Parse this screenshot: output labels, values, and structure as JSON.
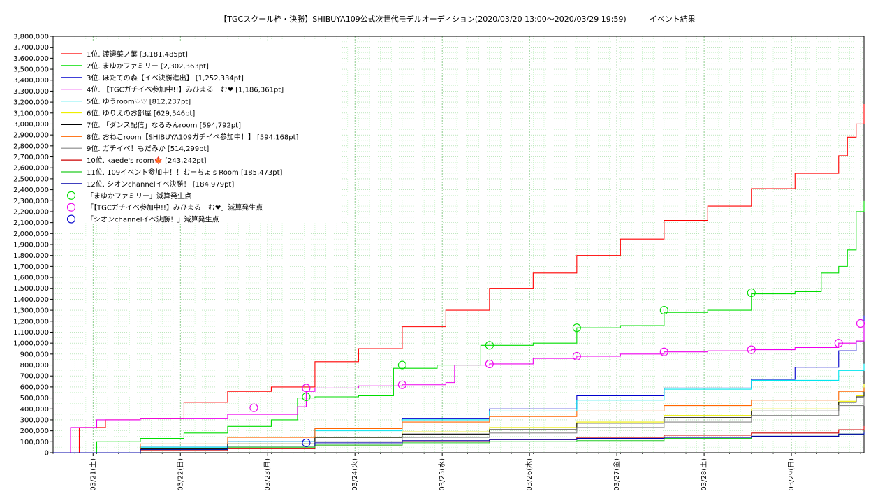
{
  "chart_data": {
    "type": "line",
    "title": "【TGCスクール枠・決勝】SHIBUYA109公式次世代モデルオーディション(2020/03/20 13:00～2020/03/29 19:59)　　　イベント結果",
    "xlabel": "",
    "ylabel": "",
    "x_ticks": [
      "03/21(土)",
      "03/22(日)",
      "03/23(月)",
      "03/24(火)",
      "03/25(水)",
      "03/26(木)",
      "03/27(金)",
      "03/28(土)",
      "03/29(日)"
    ],
    "x_range": [
      "2020/03/20 13:00",
      "2020/03/29 19:59"
    ],
    "ylim": [
      0,
      3800000
    ],
    "y_ticks": [
      "0",
      "100,000",
      "200,000",
      "300,000",
      "400,000",
      "500,000",
      "600,000",
      "700,000",
      "800,000",
      "900,000",
      "1,000,000",
      "1,100,000",
      "1,200,000",
      "1,300,000",
      "1,400,000",
      "1,500,000",
      "1,600,000",
      "1,700,000",
      "1,800,000",
      "1,900,000",
      "2,000,000",
      "2,100,000",
      "2,200,000",
      "2,300,000",
      "2,400,000",
      "2,500,000",
      "2,600,000",
      "2,700,000",
      "2,800,000",
      "2,900,000",
      "3,000,000",
      "3,100,000",
      "3,200,000",
      "3,300,000",
      "3,400,000",
      "3,500,000",
      "3,600,000",
      "3,700,000",
      "3,800,000"
    ],
    "grid": true,
    "legend_position": "top-left",
    "series": [
      {
        "name": "1位. 渡邉菜ノ葉 [3,181,485pt]",
        "color": "#ff0000",
        "x": [
          0,
          0.3,
          0.6,
          1,
          1.5,
          2,
          2.5,
          3,
          3.5,
          4,
          4.5,
          5,
          5.5,
          6,
          6.5,
          7,
          7.5,
          8,
          8.5,
          9,
          9.1,
          9.2,
          9.29
        ],
        "y": [
          0,
          230000,
          300000,
          310000,
          460000,
          560000,
          600000,
          830000,
          950000,
          1150000,
          1300000,
          1500000,
          1640000,
          1800000,
          1950000,
          2120000,
          2250000,
          2410000,
          2550000,
          2710000,
          2880000,
          3000000,
          3181485
        ]
      },
      {
        "name": "2位. まゆかファミリー [2,302,363pt]",
        "color": "#00dd00",
        "x": [
          0,
          0.5,
          1,
          1.5,
          2,
          2.5,
          2.8,
          3,
          3.5,
          3.9,
          4.4,
          4.9,
          5.5,
          6,
          6.5,
          7,
          7.5,
          8,
          8.5,
          8.8,
          9,
          9.1,
          9.2,
          9.29
        ],
        "y": [
          0,
          100000,
          130000,
          180000,
          240000,
          300000,
          500000,
          510000,
          520000,
          770000,
          800000,
          980000,
          1000000,
          1140000,
          1160000,
          1280000,
          1300000,
          1450000,
          1470000,
          1640000,
          1700000,
          1850000,
          2200000,
          2302363
        ]
      },
      {
        "name": "3位. ほたての森【イベ決勝進出】 [1,252,334pt]",
        "color": "#0000cc",
        "x": [
          0,
          1,
          2,
          3,
          4,
          5,
          6,
          7,
          8,
          8.5,
          9,
          9.2,
          9.29
        ],
        "y": [
          0,
          60000,
          100000,
          220000,
          310000,
          400000,
          520000,
          590000,
          670000,
          780000,
          930000,
          1020000,
          1252334
        ]
      },
      {
        "name": "4位. 【TGCガチイベ参加中!!】みひまるーむ❤ [1,186,361pt]",
        "color": "#ee00ee",
        "x": [
          0,
          0.2,
          0.5,
          1,
          2,
          2.8,
          2.9,
          3,
          3.5,
          4,
          4.5,
          4.6,
          5,
          5.5,
          6,
          6.5,
          7,
          7.5,
          8,
          8.5,
          9,
          9.2,
          9.29
        ],
        "y": [
          0,
          230000,
          300000,
          310000,
          350000,
          420000,
          560000,
          590000,
          610000,
          620000,
          640000,
          800000,
          810000,
          860000,
          880000,
          900000,
          920000,
          930000,
          940000,
          960000,
          1000000,
          1020000,
          1186361
        ]
      },
      {
        "name": "5位. ゆうroom♡♡ [812,237pt]",
        "color": "#00e5ee",
        "x": [
          0,
          1,
          2,
          3,
          4,
          5,
          6,
          7,
          8,
          9,
          9.29
        ],
        "y": [
          0,
          50000,
          100000,
          200000,
          300000,
          380000,
          480000,
          580000,
          660000,
          750000,
          812237
        ]
      },
      {
        "name": "6位. ゆりえのお部屋 [629,546pt]",
        "color": "#eeee00",
        "x": [
          0,
          1,
          2,
          3,
          4,
          5,
          6,
          7,
          8,
          9,
          9.2,
          9.29
        ],
        "y": [
          0,
          40000,
          80000,
          140000,
          190000,
          230000,
          280000,
          340000,
          400000,
          470000,
          520000,
          629546
        ]
      },
      {
        "name": "7位. 「ダンス配信」なるみんroom [594,792pt]",
        "color": "#000000",
        "x": [
          0,
          1,
          2,
          3,
          4,
          5,
          6,
          7,
          8,
          9,
          9.2,
          9.29
        ],
        "y": [
          0,
          40000,
          80000,
          140000,
          170000,
          210000,
          270000,
          320000,
          380000,
          460000,
          510000,
          594792
        ]
      },
      {
        "name": "8位. おねこroom【SHIBUYA109ガチイベ参加中！】 [594,168pt]",
        "color": "#ff6600",
        "x": [
          0,
          1,
          2,
          3,
          4,
          5,
          6,
          7,
          8,
          9,
          9.29
        ],
        "y": [
          0,
          80000,
          140000,
          220000,
          280000,
          330000,
          380000,
          430000,
          480000,
          560000,
          594168
        ]
      },
      {
        "name": "9位. ガチイベ！もだみか [514,299pt]",
        "color": "#888888",
        "x": [
          0,
          1,
          2,
          3,
          4,
          5,
          6,
          7,
          8,
          9,
          9.29
        ],
        "y": [
          0,
          30000,
          60000,
          100000,
          140000,
          180000,
          230000,
          280000,
          340000,
          430000,
          514299
        ]
      },
      {
        "name": "10位. kaede's room🍁 [243,242pt]",
        "color": "#cc0000",
        "x": [
          0,
          1,
          2,
          3,
          4,
          5,
          6,
          7,
          8,
          9,
          9.29
        ],
        "y": [
          0,
          20000,
          40000,
          70000,
          100000,
          120000,
          140000,
          160000,
          180000,
          210000,
          243242
        ]
      },
      {
        "name": "11位. 109イベント参加中！！むーちょ's Room [185,473pt]",
        "color": "#22cc22",
        "x": [
          0,
          1,
          2,
          3,
          4,
          5,
          6,
          7,
          8,
          9,
          9.29
        ],
        "y": [
          0,
          30000,
          50000,
          70000,
          90000,
          100000,
          110000,
          130000,
          150000,
          170000,
          185473
        ]
      },
      {
        "name": "12位. シオンchannelイベ決勝！ [184,979pt]",
        "color": "#0000aa",
        "x": [
          0,
          1,
          2,
          3,
          4,
          5,
          6,
          7,
          8,
          9,
          9.29
        ],
        "y": [
          0,
          30000,
          60000,
          90000,
          110000,
          120000,
          130000,
          140000,
          150000,
          170000,
          184979
        ]
      }
    ],
    "markers": [
      {
        "name": "「まゆかファミリー」減算発生点",
        "color": "#00dd00",
        "points": [
          [
            2.9,
            510000
          ],
          [
            4.0,
            800000
          ],
          [
            5.0,
            980000
          ],
          [
            6.0,
            1140000
          ],
          [
            7.0,
            1300000
          ],
          [
            8.0,
            1460000
          ]
        ]
      },
      {
        "name": "「【TGCガチイベ参加中!!】みひまるーむ❤」減算発生点",
        "color": "#ee00ee",
        "points": [
          [
            2.3,
            410000
          ],
          [
            2.9,
            590000
          ],
          [
            4.0,
            620000
          ],
          [
            5.0,
            810000
          ],
          [
            6.0,
            880000
          ],
          [
            7.0,
            920000
          ],
          [
            8.0,
            940000
          ],
          [
            9.0,
            1000000
          ],
          [
            9.25,
            1180000
          ]
        ]
      },
      {
        "name": "「シオンchannelイベ決勝！」減算発生点",
        "color": "#0000cc",
        "points": [
          [
            2.9,
            90000
          ]
        ]
      }
    ]
  }
}
